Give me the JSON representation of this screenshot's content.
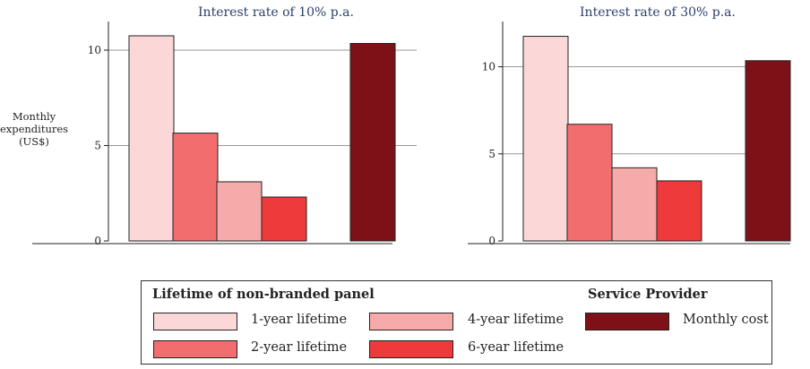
{
  "y_axis_title_lines": [
    "Monthly",
    "expenditures",
    "(US$)"
  ],
  "colors": {
    "1-year lifetime": "#fbd7d7",
    "2-year lifetime": "#f26e6e",
    "4-year lifetime": "#f7aaaa",
    "6-year lifetime": "#ee3a3a",
    "Monthly cost": "#7d1117",
    "gridline": "#999999",
    "axis": "#222222"
  },
  "chart_data": [
    {
      "type": "bar",
      "title": "Interest rate of 10% p.a.",
      "ylabel": "Monthly expenditures (US$)",
      "xlabel": "",
      "ylim": [
        0,
        11.5
      ],
      "yticks": [
        0,
        5,
        10
      ],
      "grid": true,
      "categories": [
        "1-year lifetime",
        "2-year lifetime",
        "4-year lifetime",
        "6-year lifetime",
        "Monthly cost"
      ],
      "values": [
        10.75,
        5.65,
        3.1,
        2.3,
        10.35
      ]
    },
    {
      "type": "bar",
      "title": "Interest rate of 30% p.a.",
      "ylabel": "",
      "xlabel": "",
      "ylim": [
        0,
        12.6
      ],
      "yticks": [
        0,
        5,
        10
      ],
      "grid": true,
      "categories": [
        "1-year lifetime",
        "2-year lifetime",
        "4-year lifetime",
        "6-year lifetime",
        "Monthly cost"
      ],
      "values": [
        11.75,
        6.7,
        4.2,
        3.45,
        10.35
      ]
    }
  ],
  "legend": {
    "group1_title": "Lifetime of non-branded panel",
    "group2_title": "Service Provider",
    "items": [
      {
        "label": "1-year lifetime"
      },
      {
        "label": "2-year lifetime"
      },
      {
        "label": "4-year lifetime"
      },
      {
        "label": "6-year lifetime"
      },
      {
        "label": "Monthly cost"
      }
    ]
  }
}
